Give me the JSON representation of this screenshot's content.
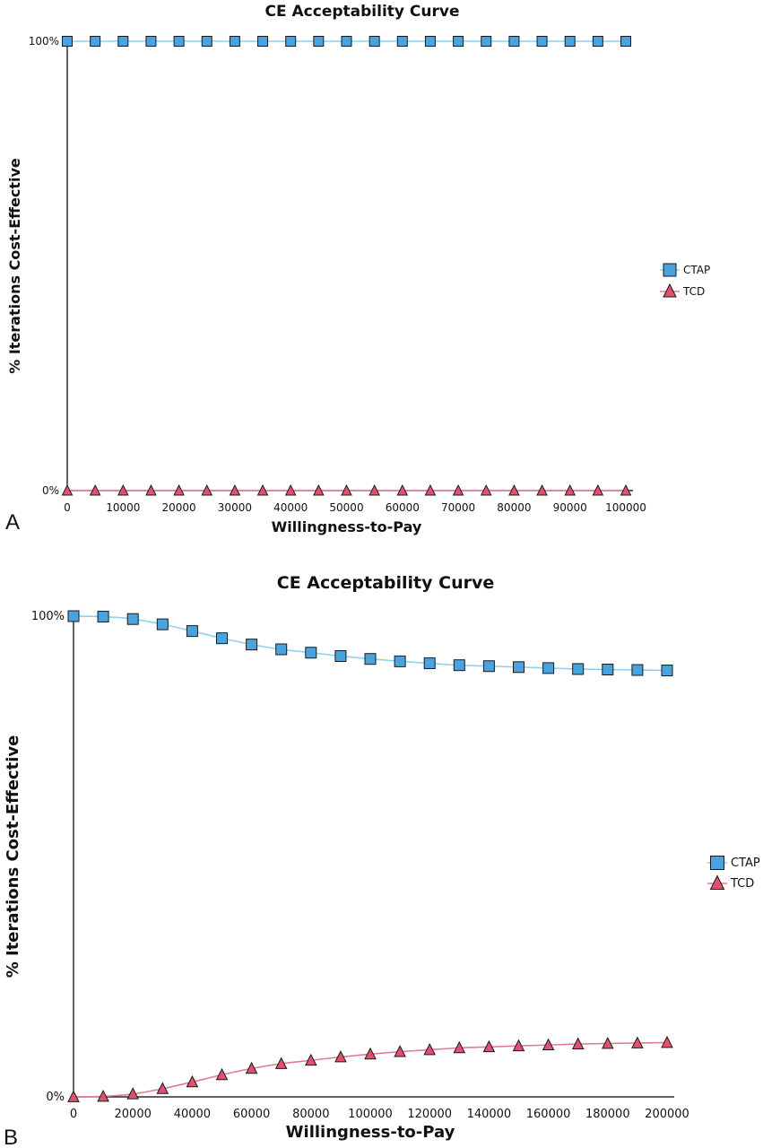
{
  "chart_data": [
    {
      "type": "line",
      "panel_label": "A",
      "title": "CE Acceptability Curve",
      "xlabel": "Willingness-to-Pay",
      "ylabel": "% Iterations Cost-Effective",
      "xlim": [
        0,
        100000
      ],
      "ylim": [
        0,
        100
      ],
      "x_ticks": [
        "0",
        "10000",
        "20000",
        "30000",
        "40000",
        "50000",
        "60000",
        "70000",
        "80000",
        "90000",
        "100000"
      ],
      "y_ticks": [
        "0%",
        "100%"
      ],
      "grid": false,
      "legend_position": "right",
      "x": [
        0,
        5000,
        10000,
        15000,
        20000,
        25000,
        30000,
        35000,
        40000,
        45000,
        50000,
        55000,
        60000,
        65000,
        70000,
        75000,
        80000,
        85000,
        90000,
        95000,
        100000
      ],
      "series": [
        {
          "name": "CTAP",
          "marker": "square",
          "color": "#4aa3df",
          "line_color": "#8fd0ef",
          "values": [
            100,
            100,
            100,
            100,
            100,
            100,
            100,
            100,
            100,
            100,
            100,
            100,
            100,
            100,
            100,
            100,
            100,
            100,
            100,
            100,
            100
          ]
        },
        {
          "name": "TCD",
          "marker": "triangle",
          "color": "#e0506f",
          "line_color": "#e07a9a",
          "values": [
            0,
            0,
            0,
            0,
            0,
            0,
            0,
            0,
            0,
            0,
            0,
            0,
            0,
            0,
            0,
            0,
            0,
            0,
            0,
            0,
            0
          ]
        }
      ]
    },
    {
      "type": "line",
      "panel_label": "B",
      "title": "CE Acceptability Curve",
      "xlabel": "Willingness-to-Pay",
      "ylabel": "% Iterations Cost-Effective",
      "xlim": [
        0,
        200000
      ],
      "ylim": [
        0,
        100
      ],
      "x_ticks": [
        "0",
        "20000",
        "40000",
        "60000",
        "80000",
        "100000",
        "120000",
        "140000",
        "160000",
        "180000",
        "200000"
      ],
      "y_ticks": [
        "0%",
        "100%"
      ],
      "grid": false,
      "legend_position": "right",
      "x": [
        0,
        10000,
        20000,
        30000,
        40000,
        50000,
        60000,
        70000,
        80000,
        90000,
        100000,
        110000,
        120000,
        130000,
        140000,
        150000,
        160000,
        170000,
        180000,
        190000,
        200000
      ],
      "series": [
        {
          "name": "CTAP",
          "marker": "square",
          "color": "#4aa3df",
          "line_color": "#8fd0ef",
          "values": [
            100,
            99.9,
            99.4,
            98.3,
            96.9,
            95.4,
            94.1,
            93.1,
            92.4,
            91.7,
            91.1,
            90.6,
            90.2,
            89.8,
            89.6,
            89.4,
            89.2,
            89.0,
            88.9,
            88.8,
            88.7
          ]
        },
        {
          "name": "TCD",
          "marker": "triangle",
          "color": "#e0506f",
          "line_color": "#e07a9a",
          "values": [
            0,
            0.1,
            0.6,
            1.7,
            3.1,
            4.6,
            5.9,
            6.9,
            7.6,
            8.3,
            8.9,
            9.4,
            9.8,
            10.2,
            10.4,
            10.6,
            10.8,
            11.0,
            11.1,
            11.2,
            11.3
          ]
        }
      ]
    }
  ]
}
